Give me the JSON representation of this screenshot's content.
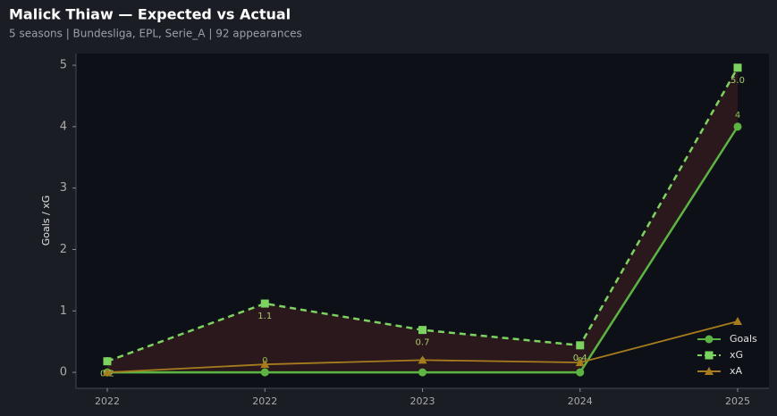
{
  "chart_data": {
    "type": "line",
    "title": "Malick Thiaw — Expected vs Actual",
    "subtitle": "5 seasons | Bundesliga, EPL, Serie_A | 92 appearances",
    "ylabel": "Goals / xG",
    "categories": [
      "2022",
      "2022",
      "2023",
      "2024",
      "2025"
    ],
    "series": [
      {
        "name": "Goals",
        "color": "#5cb543",
        "marker": "circle",
        "dash": false,
        "values": [
          0,
          0,
          0,
          0,
          4
        ],
        "value_labels": [
          "0",
          "0",
          "0",
          "0",
          "4"
        ]
      },
      {
        "name": "xG",
        "color": "#7dd35f",
        "marker": "square",
        "dash": true,
        "values": [
          0.18,
          1.12,
          0.69,
          0.44,
          4.96
        ],
        "value_labels": [
          "0.2",
          "1.1",
          "0.7",
          "0.4",
          "5.0"
        ]
      },
      {
        "name": "xA",
        "color": "#a67c1e",
        "marker": "triangle",
        "dash": false,
        "values": [
          0,
          0.13,
          0.2,
          0.16,
          0.83
        ]
      }
    ],
    "fill_between": {
      "upper": 1,
      "lower": 0,
      "color": "#2e1a1e"
    },
    "ylim": [
      -0.26,
      5.19
    ],
    "yticks": [
      0,
      1,
      2,
      3,
      4,
      5
    ],
    "legend": "lower right"
  }
}
